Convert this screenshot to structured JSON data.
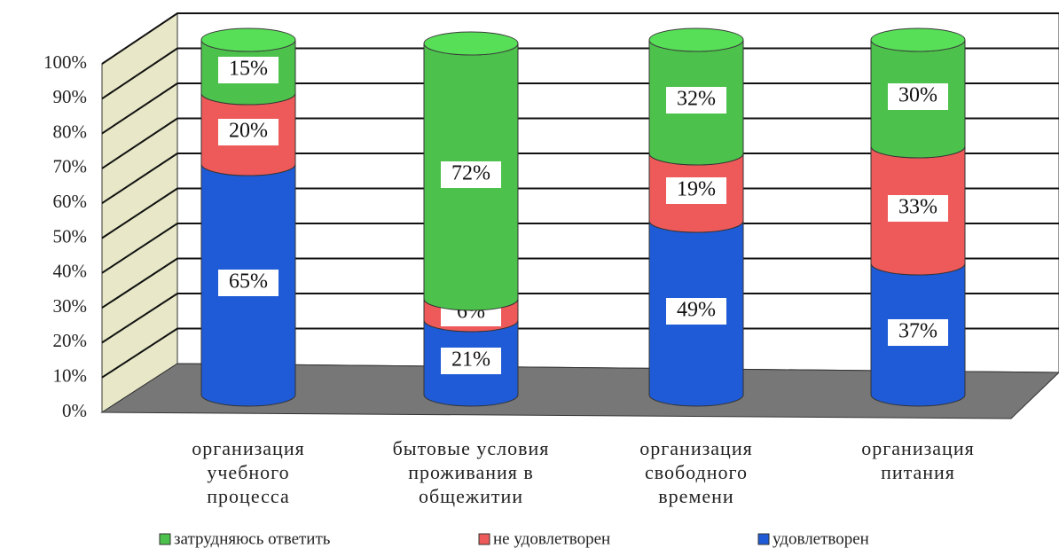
{
  "chart_data": {
    "type": "stacked-cylinder",
    "categories": [
      "организация\nучебного\nпроцесса",
      "бытовые условия\nпроживания в\nобщежитии",
      "организация\nсвободного\nвремени",
      "организация\nпитания"
    ],
    "series": [
      {
        "name": "удовлетворен",
        "color": "#1f5bd6",
        "values": [
          65,
          21,
          49,
          37
        ],
        "value_labels": [
          "65%",
          "21%",
          "49%",
          "37%"
        ]
      },
      {
        "name": "не удовлетворен",
        "color": "#ee5a5a",
        "values": [
          20,
          6,
          19,
          33
        ],
        "value_labels": [
          "20%",
          "6%",
          "19%",
          "33%"
        ]
      },
      {
        "name": "затрудняюсь ответить",
        "color": "#4cc24c",
        "values": [
          15,
          72,
          32,
          30
        ],
        "value_labels": [
          "15%",
          "72%",
          "32%",
          "30%"
        ]
      }
    ],
    "ylim": [
      0,
      100
    ],
    "yticks": [
      {
        "value": 0,
        "label": "0%"
      },
      {
        "value": 10,
        "label": "10%"
      },
      {
        "value": 20,
        "label": "20%"
      },
      {
        "value": 30,
        "label": "30%"
      },
      {
        "value": 40,
        "label": "40%"
      },
      {
        "value": 50,
        "label": "50%"
      },
      {
        "value": 60,
        "label": "60%"
      },
      {
        "value": 70,
        "label": "70%"
      },
      {
        "value": 80,
        "label": "80%"
      },
      {
        "value": 90,
        "label": "90%"
      },
      {
        "value": 100,
        "label": "100%"
      }
    ],
    "grid": true
  }
}
